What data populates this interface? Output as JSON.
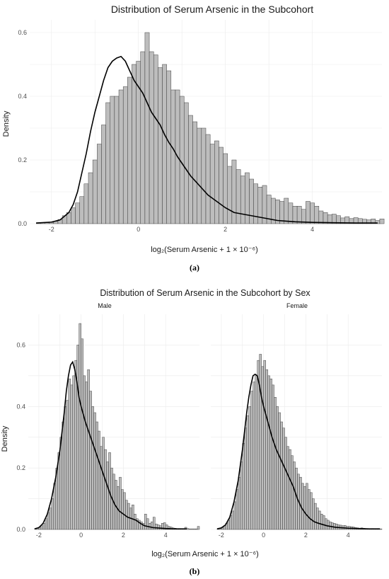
{
  "figure": {
    "panel_a_caption": "(a)",
    "panel_b_caption": "(b)"
  },
  "chart_data": [
    {
      "type": "bar",
      "title": "Distribution of Serum Arsenic in the Subcohort",
      "xlabel": "log₂(Serum Arsenic + 1 × 10⁻⁶)",
      "ylabel": "Density",
      "xlim": [
        -2.5,
        5.6
      ],
      "ylim": [
        0,
        0.64
      ],
      "x_ticks": [
        -2,
        0,
        2,
        4
      ],
      "y_ticks": [
        0.0,
        0.2,
        0.4,
        0.6
      ],
      "bin_start": -2.35,
      "bin_width": 0.1,
      "values": [
        0.003,
        0.003,
        0.003,
        0.004,
        0.007,
        0.013,
        0.025,
        0.035,
        0.05,
        0.065,
        0.085,
        0.125,
        0.16,
        0.2,
        0.25,
        0.31,
        0.38,
        0.4,
        0.4,
        0.42,
        0.43,
        0.46,
        0.5,
        0.51,
        0.54,
        0.6,
        0.54,
        0.53,
        0.49,
        0.5,
        0.48,
        0.42,
        0.42,
        0.4,
        0.38,
        0.34,
        0.32,
        0.3,
        0.3,
        0.28,
        0.25,
        0.26,
        0.24,
        0.22,
        0.18,
        0.2,
        0.17,
        0.15,
        0.16,
        0.14,
        0.125,
        0.115,
        0.12,
        0.09,
        0.08,
        0.075,
        0.07,
        0.08,
        0.065,
        0.055,
        0.055,
        0.045,
        0.07,
        0.065,
        0.055,
        0.04,
        0.035,
        0.028,
        0.03,
        0.025,
        0.018,
        0.022,
        0.016,
        0.019,
        0.016,
        0.014,
        0.012,
        0.015,
        0.01,
        0.015,
        0.018,
        0.012,
        0.008,
        0.006,
        0.004,
        0.004,
        0.003,
        0.005,
        0.004,
        0.003,
        0.004,
        0.004,
        0.004,
        0.003,
        0.004,
        0.003,
        0.004,
        0.003,
        0.003,
        0.003,
        0.003,
        0.003,
        0.003,
        0.004,
        0.003,
        0.003,
        0.002,
        0.003,
        0.003,
        0.002,
        0.003,
        0.002,
        0.002,
        0.002,
        0.002,
        0.002,
        0.002,
        0.002,
        0.002,
        0.003,
        0.002,
        0.002,
        0.002,
        0.002,
        0.002,
        0.002,
        0.002,
        0.002,
        0.002,
        0.002
      ],
      "density_curve": {
        "x": [
          -2.35,
          -2.0,
          -1.8,
          -1.6,
          -1.5,
          -1.4,
          -1.3,
          -1.2,
          -1.1,
          -1.0,
          -0.9,
          -0.8,
          -0.7,
          -0.6,
          -0.5,
          -0.4,
          -0.3,
          -0.2,
          -0.1,
          0.0,
          0.1,
          0.2,
          0.3,
          0.4,
          0.5,
          0.6,
          0.7,
          0.8,
          0.9,
          1.0,
          1.2,
          1.4,
          1.6,
          1.8,
          2.0,
          2.2,
          2.4,
          2.6,
          2.8,
          3.0,
          3.2,
          3.4,
          3.6,
          4.0,
          4.5,
          5.0,
          5.5
        ],
        "y": [
          0.002,
          0.005,
          0.012,
          0.035,
          0.06,
          0.1,
          0.16,
          0.22,
          0.29,
          0.35,
          0.4,
          0.45,
          0.49,
          0.51,
          0.52,
          0.525,
          0.51,
          0.48,
          0.45,
          0.43,
          0.41,
          0.38,
          0.35,
          0.33,
          0.31,
          0.28,
          0.255,
          0.235,
          0.21,
          0.19,
          0.15,
          0.12,
          0.09,
          0.07,
          0.05,
          0.035,
          0.03,
          0.025,
          0.02,
          0.015,
          0.01,
          0.008,
          0.006,
          0.004,
          0.003,
          0.002,
          0.002
        ]
      },
      "grid": true
    },
    {
      "type": "bar",
      "title": "Distribution of Serum Arsenic in the Subcohort by Sex",
      "xlabel": "log₂(Serum Arsenic + 1 × 10⁻⁶)",
      "ylabel": "Density",
      "xlim": [
        -2.5,
        5.6
      ],
      "ylim": [
        0,
        0.7
      ],
      "x_ticks": [
        -2,
        0,
        2,
        4
      ],
      "y_ticks": [
        0.0,
        0.2,
        0.4,
        0.6
      ],
      "grid": true,
      "facets": [
        {
          "name": "Male",
          "bin_start": -2.2,
          "bin_width": 0.1,
          "values": [
            0.003,
            0.005,
            0.008,
            0.012,
            0.02,
            0.035,
            0.055,
            0.07,
            0.1,
            0.15,
            0.2,
            0.25,
            0.3,
            0.35,
            0.4,
            0.42,
            0.49,
            0.47,
            0.5,
            0.55,
            0.6,
            0.67,
            0.62,
            0.5,
            0.48,
            0.52,
            0.45,
            0.4,
            0.38,
            0.35,
            0.32,
            0.27,
            0.3,
            0.26,
            0.22,
            0.25,
            0.2,
            0.18,
            0.16,
            0.14,
            0.17,
            0.13,
            0.12,
            0.095,
            0.085,
            0.07,
            0.08,
            0.05,
            0.035,
            0.03,
            0.025,
            0.02,
            0.05,
            0.035,
            0.02,
            0.025,
            0.04,
            0.018,
            0.015,
            0.012,
            0.02,
            0.022,
            0.015,
            0.01,
            0.008,
            0.005,
            0.004,
            0.003,
            0.003,
            0.002,
            0.002,
            0.007,
            0.003,
            0.002,
            0.002,
            0.002,
            0.002,
            0.01,
            0.003,
            0.002,
            0.002,
            0.002,
            0.002,
            0.002,
            0.002,
            0.002,
            0.002,
            0.002,
            0.002,
            0.002,
            0.002,
            0.002,
            0.002,
            0.002,
            0.002,
            0.002,
            0.002,
            0.002,
            0.002,
            0.002,
            0.002,
            0.002,
            0.002,
            0.002,
            0.002,
            0.002,
            0.002,
            0.002,
            0.002,
            0.002,
            0.002,
            0.002,
            0.002,
            0.002,
            0.002,
            0.002,
            0.002,
            0.002,
            0.002,
            0.002,
            0.002,
            0.002,
            0.002,
            0.002,
            0.002,
            0.002,
            0.002,
            0.002,
            0.002,
            0.002,
            0.002,
            0.002,
            0.002,
            0.002,
            0.002,
            0.002,
            0.002,
            0.002,
            0.002,
            0.002,
            0.002,
            0.002,
            0.002,
            0.002,
            0.002,
            0.002,
            0.002,
            0.002,
            0.002,
            0.002,
            0.002,
            0.002,
            0.002,
            0.002,
            0.002,
            0.002,
            0.002,
            0.002,
            0.002,
            0.002,
            0.002,
            0.002,
            0.002,
            0.002,
            0.002,
            0.002,
            0.002,
            0.002,
            0.002,
            0.002,
            0.002,
            0.002,
            0.002,
            0.002,
            0.002,
            0.002,
            0.002,
            0.002,
            0.002,
            0.002,
            0.002,
            0.002,
            0.002,
            0.002,
            0.002,
            0.002,
            0.002,
            0.002,
            0.002,
            0.002,
            0.002,
            0.002,
            0.002,
            0.002,
            0.002,
            0.002,
            0.002,
            0.002,
            0.002,
            0.002,
            0.002,
            0.002,
            0.002,
            0.002,
            0.002,
            0.002,
            0.002,
            0.002,
            0.002,
            0.002,
            0.002,
            0.002,
            0.002,
            0.002,
            0.002,
            0.002,
            0.002,
            0.002,
            0.002,
            0.002,
            0.002,
            0.002,
            0.002,
            0.002,
            0.002,
            0.002,
            0.002,
            0.002,
            0.002,
            0.002,
            0.002,
            0.002,
            0.002,
            0.002,
            0.002,
            0.002,
            0.002,
            0.002,
            0.002,
            0.002,
            0.002,
            0.002,
            0.002,
            0.002,
            0.002,
            0.002,
            0.002,
            0.002,
            0.002,
            0.002,
            0.002,
            0.002,
            0.002,
            0.002,
            0.002,
            0.002,
            0.002,
            0.002,
            0.002,
            0.002,
            0.002,
            0.002,
            0.002,
            0.002,
            0.002,
            0.002,
            0.002,
            0.002,
            0.002,
            0.002,
            0.002,
            0.002,
            0.002,
            0.002,
            0.002,
            0.002,
            0.002
          ],
          "density_curve": {
            "x": [
              -2.2,
              -2.0,
              -1.8,
              -1.6,
              -1.4,
              -1.2,
              -1.0,
              -0.9,
              -0.8,
              -0.7,
              -0.6,
              -0.5,
              -0.4,
              -0.3,
              -0.2,
              -0.1,
              0.0,
              0.2,
              0.4,
              0.6,
              0.8,
              1.0,
              1.2,
              1.4,
              1.6,
              1.8,
              2.0,
              2.2,
              2.4,
              2.6,
              2.8,
              3.0,
              3.4,
              4.0,
              4.5,
              5.0
            ],
            "y": [
              0.002,
              0.006,
              0.02,
              0.05,
              0.1,
              0.17,
              0.26,
              0.32,
              0.38,
              0.45,
              0.5,
              0.535,
              0.545,
              0.52,
              0.48,
              0.43,
              0.4,
              0.35,
              0.31,
              0.27,
              0.23,
              0.19,
              0.15,
              0.11,
              0.08,
              0.06,
              0.05,
              0.04,
              0.035,
              0.03,
              0.02,
              0.012,
              0.006,
              0.003,
              0.002,
              0.002
            ]
          }
        },
        {
          "name": "Female",
          "bin_start": -2.2,
          "bin_width": 0.1,
          "values": [
            0.002,
            0.004,
            0.007,
            0.012,
            0.02,
            0.03,
            0.045,
            0.06,
            0.09,
            0.13,
            0.17,
            0.22,
            0.28,
            0.33,
            0.37,
            0.4,
            0.45,
            0.48,
            0.5,
            0.55,
            0.57,
            0.53,
            0.55,
            0.52,
            0.5,
            0.49,
            0.47,
            0.43,
            0.4,
            0.38,
            0.35,
            0.33,
            0.3,
            0.27,
            0.26,
            0.24,
            0.22,
            0.2,
            0.18,
            0.17,
            0.15,
            0.14,
            0.15,
            0.13,
            0.12,
            0.1,
            0.085,
            0.07,
            0.06,
            0.05,
            0.045,
            0.035,
            0.03,
            0.025,
            0.022,
            0.02,
            0.018,
            0.015,
            0.014,
            0.012,
            0.013,
            0.01,
            0.01,
            0.009,
            0.008,
            0.006,
            0.005,
            0.004,
            0.005,
            0.004,
            0.003,
            0.003,
            0.002,
            0.003,
            0.002,
            0.002,
            0.003,
            0.002,
            0.002,
            0.003,
            0.002,
            0.002,
            0.002,
            0.002,
            0.002,
            0.002,
            0.002,
            0.002,
            0.002,
            0.002,
            0.002,
            0.002,
            0.002,
            0.002,
            0.002,
            0.002,
            0.002,
            0.002,
            0.002,
            0.002,
            0.002,
            0.002,
            0.002,
            0.002,
            0.002,
            0.002,
            0.002,
            0.002,
            0.002,
            0.002,
            0.002,
            0.002,
            0.002,
            0.002,
            0.002,
            0.002,
            0.002,
            0.002,
            0.002,
            0.002,
            0.002,
            0.002,
            0.002,
            0.002,
            0.002,
            0.002,
            0.002,
            0.002,
            0.002,
            0.002,
            0.002,
            0.002,
            0.002,
            0.002,
            0.002,
            0.002,
            0.002,
            0.002,
            0.002,
            0.002,
            0.002,
            0.002,
            0.002,
            0.002,
            0.002,
            0.002,
            0.002,
            0.002,
            0.002,
            0.002,
            0.002,
            0.002,
            0.002,
            0.002,
            0.002,
            0.002,
            0.002,
            0.002,
            0.002,
            0.002,
            0.002,
            0.002,
            0.002,
            0.002,
            0.002,
            0.002,
            0.002,
            0.002,
            0.002,
            0.002,
            0.002,
            0.002,
            0.002,
            0.002,
            0.002,
            0.002,
            0.002,
            0.002,
            0.002,
            0.002,
            0.002,
            0.002,
            0.002,
            0.002,
            0.002,
            0.002,
            0.002,
            0.002,
            0.002,
            0.002,
            0.002,
            0.002,
            0.002,
            0.002,
            0.002,
            0.002,
            0.002,
            0.002,
            0.002,
            0.002,
            0.002,
            0.002,
            0.002,
            0.002,
            0.002,
            0.002,
            0.002,
            0.002,
            0.002,
            0.002,
            0.002,
            0.002,
            0.002,
            0.002,
            0.002,
            0.002,
            0.002,
            0.002,
            0.002,
            0.002,
            0.002,
            0.002,
            0.002,
            0.002,
            0.002,
            0.002,
            0.002,
            0.002,
            0.002,
            0.002,
            0.002,
            0.002,
            0.002,
            0.002,
            0.002,
            0.002,
            0.002,
            0.002,
            0.002,
            0.002,
            0.002,
            0.002,
            0.002,
            0.002,
            0.002,
            0.002,
            0.002,
            0.002,
            0.002,
            0.002,
            0.002,
            0.002,
            0.002,
            0.002,
            0.002,
            0.002,
            0.002,
            0.002,
            0.002,
            0.002,
            0.002,
            0.002,
            0.002,
            0.002,
            0.002,
            0.002,
            0.002,
            0.002,
            0.002,
            0.002,
            0.002,
            0.002,
            0.002,
            0.002,
            0.002,
            0.002,
            0.002,
            0.002,
            0.002,
            0.002
          ],
          "density_curve": {
            "x": [
              -2.2,
              -2.0,
              -1.8,
              -1.6,
              -1.4,
              -1.2,
              -1.0,
              -0.8,
              -0.7,
              -0.6,
              -0.5,
              -0.4,
              -0.3,
              -0.2,
              -0.1,
              0.0,
              0.2,
              0.4,
              0.6,
              0.8,
              1.0,
              1.2,
              1.4,
              1.6,
              1.8,
              2.0,
              2.2,
              2.4,
              2.6,
              3.0,
              3.4,
              4.0,
              4.5,
              5.0,
              5.5
            ],
            "y": [
              0.002,
              0.005,
              0.015,
              0.04,
              0.09,
              0.16,
              0.26,
              0.38,
              0.43,
              0.47,
              0.5,
              0.505,
              0.5,
              0.47,
              0.43,
              0.4,
              0.35,
              0.3,
              0.26,
              0.23,
              0.2,
              0.17,
              0.14,
              0.1,
              0.07,
              0.05,
              0.035,
              0.025,
              0.02,
              0.012,
              0.007,
              0.004,
              0.003,
              0.002,
              0.002
            ]
          }
        }
      ]
    }
  ]
}
